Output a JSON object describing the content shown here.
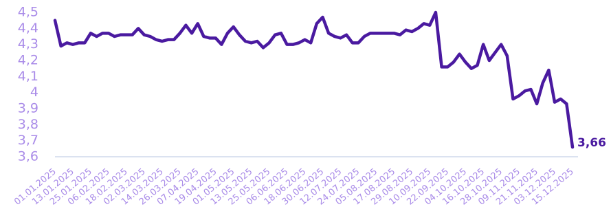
{
  "chart_data": {
    "type": "line",
    "categories": [
      "01.01.2025",
      null,
      null,
      "13.01.2025",
      null,
      null,
      "25.01.2025",
      null,
      null,
      "06.02.2025",
      null,
      null,
      "18.02.2025",
      null,
      null,
      "02.03.2025",
      null,
      null,
      "14.03.2025",
      null,
      null,
      "26.03.2025",
      null,
      null,
      "07.04.2025",
      null,
      null,
      "19.04.2025",
      null,
      null,
      "01.05.2025",
      null,
      null,
      "13.05.2025",
      null,
      null,
      "25.05.2025",
      null,
      null,
      "06.06.2025",
      null,
      null,
      "18.06.2025",
      null,
      null,
      "30.06.2025",
      null,
      null,
      "12.07.2025",
      null,
      null,
      "24.07.2025",
      null,
      null,
      "05.08.2025",
      null,
      null,
      "17.08.2025",
      null,
      null,
      "29.08.2025",
      null,
      null,
      "10.09.2025",
      null,
      null,
      "22.09.2025",
      null,
      null,
      "04.10.2025",
      null,
      null,
      "16.10.2025",
      null,
      null,
      "28.10.2025",
      null,
      null,
      "09.11.2025",
      null,
      null,
      "21.11.2025",
      null,
      null,
      "03.12.2025",
      null,
      null,
      "15.12.2025"
    ],
    "values": [
      4.45,
      4.29,
      4.31,
      4.3,
      4.31,
      4.31,
      4.37,
      4.35,
      4.37,
      4.37,
      4.35,
      4.36,
      4.36,
      4.36,
      4.4,
      4.36,
      4.35,
      4.33,
      4.32,
      4.33,
      4.33,
      4.37,
      4.42,
      4.37,
      4.43,
      4.35,
      4.34,
      4.34,
      4.3,
      4.37,
      4.41,
      4.36,
      4.32,
      4.31,
      4.32,
      4.28,
      4.31,
      4.36,
      4.37,
      4.3,
      4.3,
      4.31,
      4.33,
      4.31,
      4.43,
      4.47,
      4.37,
      4.35,
      4.34,
      4.36,
      4.31,
      4.31,
      4.35,
      4.37,
      4.37,
      4.37,
      4.37,
      4.37,
      4.36,
      4.39,
      4.38,
      4.4,
      4.43,
      4.42,
      4.5,
      4.16,
      4.16,
      4.19,
      4.24,
      4.19,
      4.15,
      4.17,
      4.3,
      4.2,
      4.25,
      4.3,
      4.23,
      3.96,
      3.98,
      4.01,
      4.02,
      3.93,
      4.06,
      4.14,
      3.94,
      3.96,
      3.93,
      3.66
    ],
    "value_labels": [
      null,
      null,
      null,
      null,
      null,
      null,
      null,
      null,
      null,
      null,
      null,
      null,
      null,
      null,
      null,
      null,
      null,
      null,
      null,
      null,
      null,
      null,
      null,
      null,
      null,
      null,
      null,
      null,
      null,
      null,
      null,
      null,
      null,
      null,
      null,
      null,
      null,
      null,
      null,
      null,
      null,
      null,
      null,
      null,
      null,
      null,
      null,
      null,
      null,
      null,
      null,
      null,
      null,
      null,
      null,
      null,
      null,
      null,
      null,
      null,
      null,
      null,
      null,
      null,
      null,
      null,
      null,
      null,
      null,
      null,
      null,
      null,
      null,
      null,
      null,
      null,
      null,
      null,
      null,
      null,
      null,
      null,
      null,
      null,
      null,
      null,
      null,
      "3,66"
    ],
    "color": "#4a1aa0",
    "ylim": [
      3.6,
      4.5
    ],
    "yticks": [
      {
        "value": 3.6,
        "label": "3,6"
      },
      {
        "value": 3.7,
        "label": "3,7"
      },
      {
        "value": 3.8,
        "label": "3,8"
      },
      {
        "value": 3.9,
        "label": "3,9"
      },
      {
        "value": 4.0,
        "label": "4"
      },
      {
        "value": 4.1,
        "label": "4,1"
      },
      {
        "value": 4.2,
        "label": "4,2"
      },
      {
        "value": 4.3,
        "label": "4,3"
      },
      {
        "value": 4.4,
        "label": "4,4"
      },
      {
        "value": 4.5,
        "label": "4,5"
      }
    ],
    "grid": false
  }
}
